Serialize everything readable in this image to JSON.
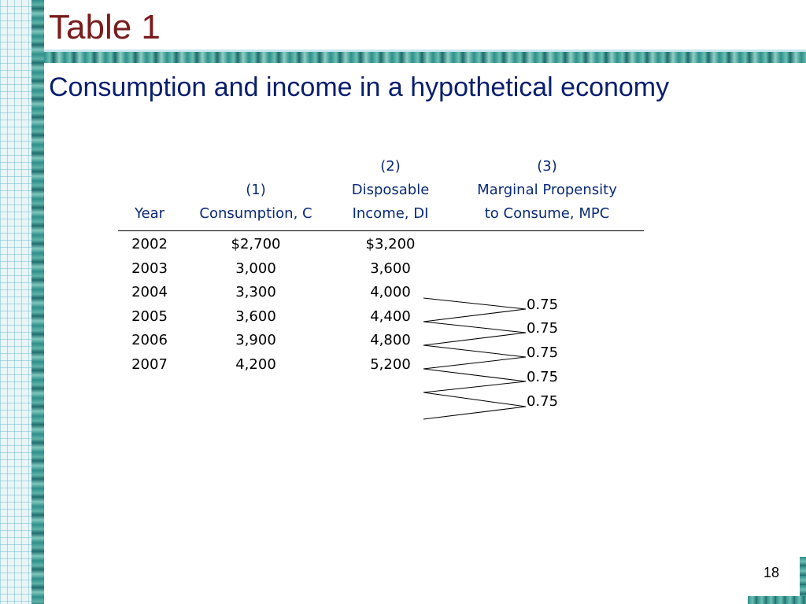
{
  "slide": {
    "title": "Table 1",
    "subtitle": "Consumption and income in a hypothetical economy",
    "page_number": "18"
  },
  "table": {
    "headers": {
      "year": [
        "Year"
      ],
      "col1": [
        "(1)",
        "Consumption, C"
      ],
      "col2": [
        "(2)",
        "Disposable",
        "Income, DI"
      ],
      "col3": [
        "(3)",
        "Marginal Propensity",
        "to Consume, MPC"
      ]
    },
    "rows": [
      {
        "year": "2002",
        "consumption": "$2,700",
        "income": "$3,200"
      },
      {
        "year": "2003",
        "consumption": "3,000",
        "income": "3,600"
      },
      {
        "year": "2004",
        "consumption": "3,300",
        "income": "4,000"
      },
      {
        "year": "2005",
        "consumption": "3,600",
        "income": "4,400"
      },
      {
        "year": "2006",
        "consumption": "3,900",
        "income": "4,800"
      },
      {
        "year": "2007",
        "consumption": "4,200",
        "income": "5,200"
      }
    ],
    "mpc_values": [
      "0.75",
      "0.75",
      "0.75",
      "0.75",
      "0.75"
    ]
  },
  "colors": {
    "title": "#7a1c1c",
    "subtitle": "#0a1e6e",
    "header_text": "#0a2a78",
    "accent_teal": "#2f8f8a"
  }
}
